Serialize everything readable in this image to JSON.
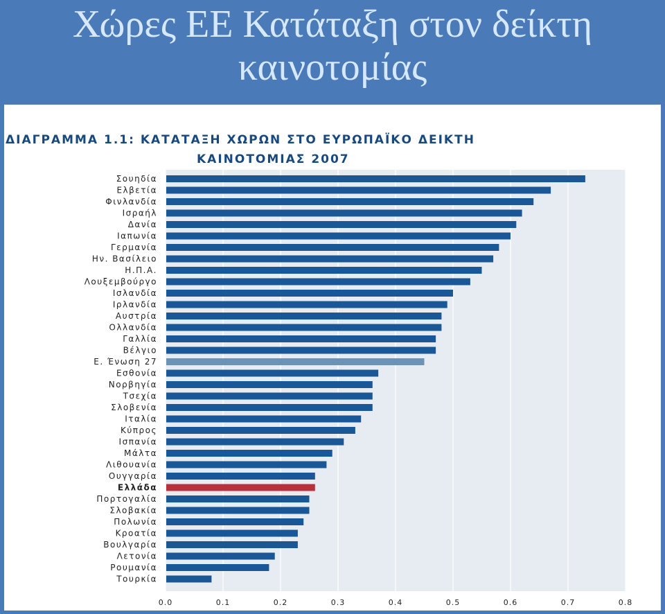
{
  "slide": {
    "title_line1": "Χώρες ΕΕ Κατάταξη στον δείκτη",
    "title_line2": "καινοτομίας"
  },
  "chart_data": {
    "type": "bar",
    "orientation": "horizontal",
    "title_line1": "ΔΙΑΓΡΑΜΜΑ 1.1: ΚΑΤΑΤΑΞΗ ΧΩΡΩΝ ΣΤΟ ΕΥΡΩΠΑΪΚΟ ΔΕΙΚΤΗ",
    "title_line2": "ΚΑΙΝΟΤΟΜΙΑΣ 2007",
    "categories": [
      "Σουηδία",
      "Ελβετία",
      "Φινλανδία",
      "Ισραήλ",
      "Δανία",
      "Ιαπωνία",
      "Γερμανία",
      "Ην. Βασίλειο",
      "Η.Π.Α.",
      "Λουξεμβούργο",
      "Ισλανδία",
      "Ιρλανδία",
      "Αυστρία",
      "Ολλανδία",
      "Γαλλία",
      "Βέλγιο",
      "Ε. Ένωση 27",
      "Εσθονία",
      "Νορβηγία",
      "Τσεχία",
      "Σλοβενία",
      "Ιταλία",
      "Κύπρος",
      "Ισπανία",
      "Μάλτα",
      "Λιθουανία",
      "Ουγγαρία",
      "Ελλάδα",
      "Πορτογαλία",
      "Σλοβακία",
      "Πολωνία",
      "Κροατία",
      "Βουλγαρία",
      "Λετονία",
      "Ρουμανία",
      "Τουρκία"
    ],
    "values": [
      0.73,
      0.67,
      0.64,
      0.62,
      0.61,
      0.6,
      0.58,
      0.57,
      0.55,
      0.53,
      0.5,
      0.49,
      0.48,
      0.48,
      0.47,
      0.47,
      0.45,
      0.37,
      0.36,
      0.36,
      0.36,
      0.34,
      0.33,
      0.31,
      0.29,
      0.28,
      0.26,
      0.26,
      0.25,
      0.25,
      0.24,
      0.23,
      0.23,
      0.19,
      0.18,
      0.08
    ],
    "highlight": {
      "Ε. Ένωση 27": "eu",
      "Ελλάδα": "greece"
    },
    "xlim": [
      0,
      0.8
    ],
    "x_ticks": [
      "0.0",
      "0.1",
      "0.2",
      "0.3",
      "0.4",
      "0.5",
      "0.6",
      "0.7",
      "0.8"
    ],
    "grid": true,
    "colors": {
      "bar": "#1a5796",
      "eu": "#6a93b6",
      "greece": "#b8303c",
      "heading": "#17497f",
      "slide_background": "#4a7ab8",
      "slide_title": "#d6e8ff"
    }
  }
}
